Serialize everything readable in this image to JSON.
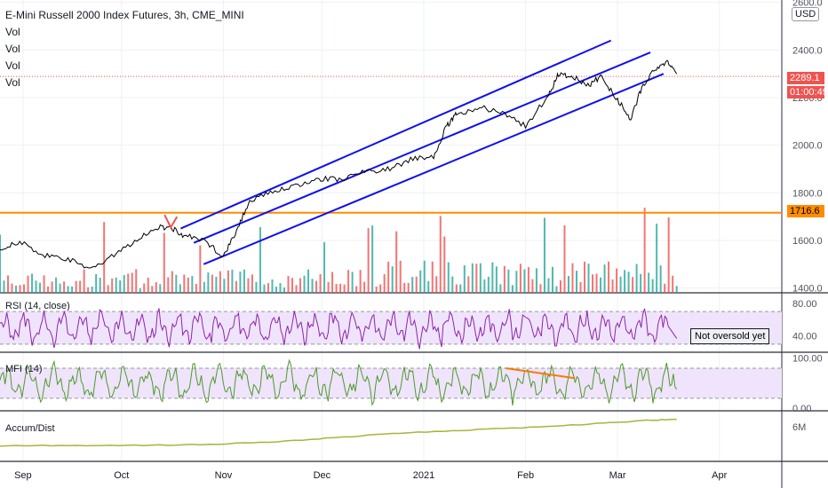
{
  "header": {
    "title": "E-Mini Russell 2000 Index Futures, 3h, CME_MINI",
    "vol_labels": [
      "Vol",
      "Vol",
      "Vol",
      "Vol"
    ],
    "currency_badge": "USD"
  },
  "price_tags": {
    "last_price": "2289.1",
    "countdown": "01:00:49",
    "hline_value": "1716.6"
  },
  "colors": {
    "price_line": "#000000",
    "channel": "#1010ee",
    "hline": "#ff8c00",
    "vol_up": "#26a69a",
    "vol_down": "#ef5350",
    "rsi": "#8e24aa",
    "mfi": "#4c9a2a",
    "accum": "#aab33a",
    "band_fill": "#efe4fb",
    "last_price_tag": "#ef5350",
    "annotation_arrow": "#ef5350",
    "mfi_trendline": "#f57c00"
  },
  "chart_data": [
    {
      "type": "line",
      "pane": "price",
      "title": "E-Mini Russell 2000 Index Futures, 3h, CME_MINI",
      "x": [
        "2020-08-25",
        "2020-08-31",
        "2020-09-07",
        "2020-09-14",
        "2020-09-21",
        "2020-09-28",
        "2020-10-05",
        "2020-10-12",
        "2020-10-16",
        "2020-10-20",
        "2020-10-26",
        "2020-11-01",
        "2020-11-05",
        "2020-11-09",
        "2020-11-16",
        "2020-11-23",
        "2020-11-30",
        "2020-12-07",
        "2020-12-14",
        "2020-12-21",
        "2020-12-28",
        "2021-01-04",
        "2021-01-08",
        "2021-01-11",
        "2021-01-18",
        "2021-01-25",
        "2021-02-01",
        "2021-02-08",
        "2021-02-11",
        "2021-02-15",
        "2021-02-20",
        "2021-02-24",
        "2021-03-01",
        "2021-03-05",
        "2021-03-08",
        "2021-03-12",
        "2021-03-16",
        "2021-03-19"
      ],
      "values": [
        1565,
        1595,
        1535,
        1525,
        1480,
        1530,
        1600,
        1655,
        1655,
        1620,
        1600,
        1535,
        1640,
        1770,
        1800,
        1830,
        1860,
        1855,
        1890,
        1900,
        1940,
        1955,
        2080,
        2130,
        2160,
        2140,
        2080,
        2210,
        2300,
        2290,
        2250,
        2290,
        2190,
        2110,
        2230,
        2310,
        2350,
        2300
      ],
      "ylim": [
        1380,
        2610
      ],
      "yticks": [
        1400,
        1600,
        1800,
        2000,
        2200,
        2400,
        2600
      ],
      "yticklabels": [
        "1400.0",
        "1600.0",
        "1800.0",
        "2000.0",
        "2200.0",
        "2400.0",
        "2600.0"
      ],
      "xticks": [
        "2020-09-01",
        "2020-10-01",
        "2020-11-01",
        "2020-12-01",
        "2021-01-01",
        "2021-02-01",
        "2021-03-01",
        "2021-04-01"
      ],
      "xticklabels": [
        "Sep",
        "Oct",
        "Nov",
        "Dec",
        "2021",
        "Feb",
        "Mar",
        "Apr"
      ],
      "xlim": [
        "2020-08-25",
        "2021-04-20"
      ],
      "grid": true,
      "horizontal_line": 1716.6,
      "last_price": 2289.1,
      "trend_channel": [
        {
          "x": [
            "2020-10-19",
            "2021-02-27"
          ],
          "y": [
            1650,
            2440
          ]
        },
        {
          "x": [
            "2020-10-23",
            "2021-03-11"
          ],
          "y": [
            1590,
            2390
          ]
        },
        {
          "x": [
            "2020-10-26",
            "2021-03-15"
          ],
          "y": [
            1500,
            2300
          ]
        }
      ],
      "annotation_arrow": {
        "x": "2020-10-16",
        "y": 1655
      }
    },
    {
      "type": "bar",
      "pane": "price",
      "name": "Vol",
      "count": 170,
      "pattern": "irregular spikes, larger from late December onward",
      "max_relative": 1.0
    },
    {
      "type": "line",
      "pane": "rsi",
      "title": "RSI (14, close)",
      "ylim": [
        20,
        92
      ],
      "yticks": [
        40,
        80
      ],
      "yticklabels": [
        "40.00",
        "80.00"
      ],
      "band": [
        30,
        70
      ],
      "annotation_text": "Not oversold yet",
      "last_value": 37
    },
    {
      "type": "line",
      "pane": "mfi",
      "title": "MFI (14)",
      "ylim": [
        -5,
        110
      ],
      "yticks": [
        0,
        100
      ],
      "yticklabels": [
        "0.00",
        "100.00"
      ],
      "band": [
        20,
        80
      ],
      "trendline": {
        "x": [
          "2021-01-26",
          "2021-02-16"
        ],
        "y": [
          80,
          60
        ]
      }
    },
    {
      "type": "line",
      "pane": "accum",
      "title": "Accum/Dist",
      "x": [
        "2020-08-25",
        "2020-09-15",
        "2020-10-05",
        "2020-10-25",
        "2020-11-15",
        "2020-12-05",
        "2020-12-25",
        "2021-01-15",
        "2021-02-05",
        "2021-02-25",
        "2021-03-10",
        "2021-03-19"
      ],
      "values": [
        3.5,
        3.6,
        3.6,
        3.7,
        4.0,
        4.6,
        5.2,
        5.6,
        6.0,
        6.5,
        6.9,
        7.0
      ],
      "ylim": [
        1.5,
        8
      ],
      "yticks": [
        6
      ],
      "yticklabels": [
        "6M"
      ]
    }
  ]
}
